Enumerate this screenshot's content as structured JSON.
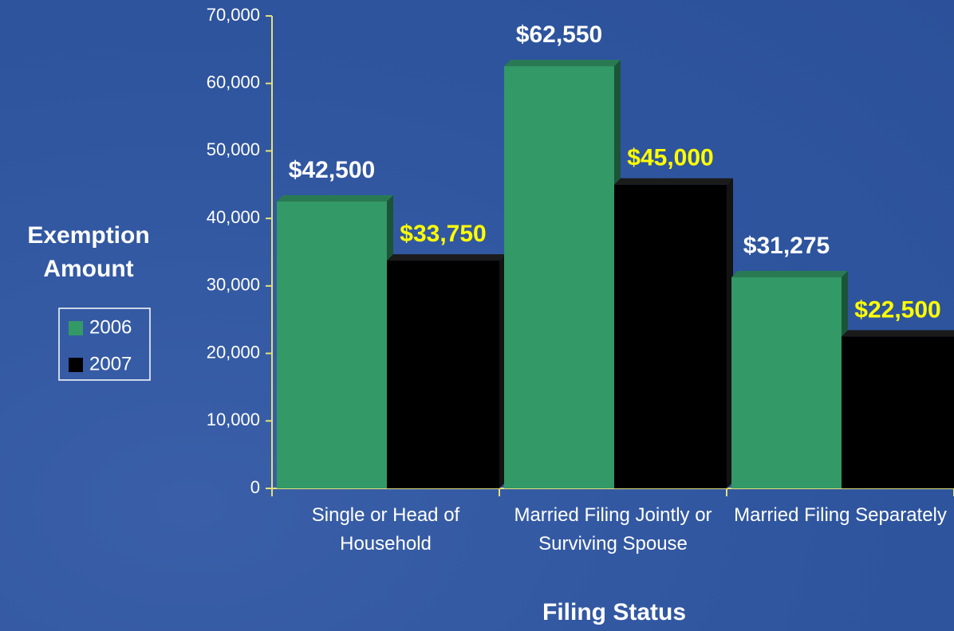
{
  "chart_data": {
    "type": "bar",
    "x_label": "Filing Status",
    "y_label": "Exemption Amount",
    "categories": [
      "Single or Head of Household",
      "Married Filing Jointly or Surviving Spouse",
      "Married Filing Separately"
    ],
    "series": [
      {
        "name": "2006",
        "color": "#339966",
        "values": [
          42500,
          62550,
          31275
        ],
        "value_labels": [
          "$42,500",
          "$62,550",
          "$31,275"
        ],
        "label_color": "#ffffff"
      },
      {
        "name": "2007",
        "color": "#000000",
        "values": [
          33750,
          45000,
          22500
        ],
        "value_labels": [
          "$33,750",
          "$45,000",
          "$22,500"
        ],
        "label_color": "#ffff00"
      }
    ],
    "ylim": [
      0,
      70000
    ],
    "yticks": [
      0,
      {
        "value": 10000,
        "label": "10,000"
      },
      {
        "value": 20000,
        "label": "20,000"
      },
      {
        "value": 30000,
        "label": "30,000"
      },
      {
        "value": 40000,
        "label": "40,000"
      },
      {
        "value": 50000,
        "label": "50,000"
      },
      {
        "value": 60000,
        "label": "60,000"
      },
      {
        "value": 70000,
        "label": "70,000"
      }
    ]
  }
}
